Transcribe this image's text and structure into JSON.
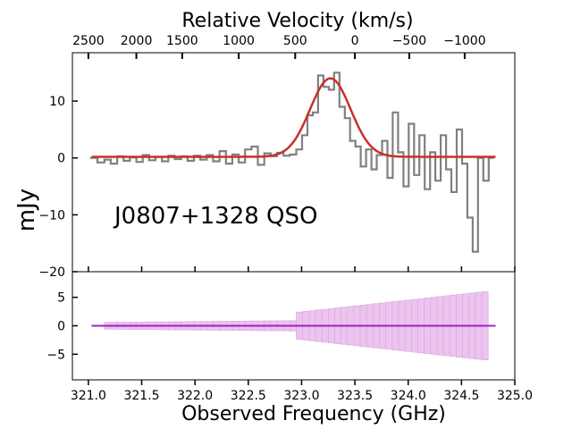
{
  "chart_data": [
    {
      "type": "line",
      "panel": "top",
      "title": "Relative Velocity (km/s)",
      "annotation": "J0807+1328 QSO",
      "ylabel": "mJy",
      "xlim": [
        320.85,
        325.0
      ],
      "ylim": [
        -20,
        18.5
      ],
      "yticks": [
        -20,
        -10,
        0,
        10
      ],
      "ytick_labels": [
        "−20",
        "−10",
        "0",
        "10"
      ],
      "top_axis": {
        "label": "Relative Velocity (km/s)",
        "ticks": [
          {
            "value": 2500,
            "label": "2500",
            "freq": 321.0
          },
          {
            "value": 2000,
            "label": "2000",
            "freq": 321.45
          },
          {
            "value": 1500,
            "label": "1500",
            "freq": 321.88
          },
          {
            "value": 1000,
            "label": "1000",
            "freq": 322.41
          },
          {
            "value": 500,
            "label": "500",
            "freq": 322.94
          },
          {
            "value": 0,
            "label": "0",
            "freq": 323.5
          },
          {
            "value": -500,
            "label": "−500",
            "freq": 324.01
          },
          {
            "value": -1000,
            "label": "−1000",
            "freq": 324.53
          }
        ]
      },
      "series": [
        {
          "name": "spectrum",
          "style": "step",
          "color": "#808080",
          "points": [
            [
              321.05,
              0.0
            ],
            [
              321.12,
              -0.8
            ],
            [
              321.18,
              -0.3
            ],
            [
              321.24,
              -1.0
            ],
            [
              321.3,
              0.3
            ],
            [
              321.36,
              -0.5
            ],
            [
              321.42,
              0.1
            ],
            [
              321.48,
              -0.7
            ],
            [
              321.54,
              0.5
            ],
            [
              321.6,
              -0.4
            ],
            [
              321.66,
              0.2
            ],
            [
              321.72,
              -0.6
            ],
            [
              321.78,
              0.4
            ],
            [
              321.84,
              -0.2
            ],
            [
              321.9,
              0.3
            ],
            [
              321.96,
              -0.5
            ],
            [
              322.02,
              0.4
            ],
            [
              322.08,
              -0.3
            ],
            [
              322.14,
              0.5
            ],
            [
              322.2,
              -0.6
            ],
            [
              322.26,
              1.2
            ],
            [
              322.32,
              -1.0
            ],
            [
              322.38,
              0.6
            ],
            [
              322.44,
              -0.8
            ],
            [
              322.5,
              1.5
            ],
            [
              322.56,
              2.0
            ],
            [
              322.62,
              -1.2
            ],
            [
              322.68,
              0.8
            ],
            [
              322.74,
              0.3
            ],
            [
              322.8,
              0.9
            ],
            [
              322.86,
              0.4
            ],
            [
              322.92,
              0.6
            ],
            [
              322.98,
              1.5
            ],
            [
              323.03,
              4.0
            ],
            [
              323.08,
              7.5
            ],
            [
              323.13,
              8.0
            ],
            [
              323.18,
              14.5
            ],
            [
              323.23,
              12.5
            ],
            [
              323.28,
              12.0
            ],
            [
              323.33,
              15.0
            ],
            [
              323.38,
              9.0
            ],
            [
              323.43,
              7.0
            ],
            [
              323.48,
              3.0
            ],
            [
              323.53,
              2.0
            ],
            [
              323.58,
              -1.5
            ],
            [
              323.63,
              1.5
            ],
            [
              323.68,
              -2.0
            ],
            [
              323.73,
              0.5
            ],
            [
              323.78,
              3.0
            ],
            [
              323.83,
              -3.5
            ],
            [
              323.88,
              8.0
            ],
            [
              323.93,
              1.0
            ],
            [
              323.98,
              -5.0
            ],
            [
              324.03,
              6.0
            ],
            [
              324.08,
              -3.0
            ],
            [
              324.13,
              4.0
            ],
            [
              324.18,
              -5.5
            ],
            [
              324.23,
              1.0
            ],
            [
              324.28,
              -4.0
            ],
            [
              324.33,
              4.0
            ],
            [
              324.38,
              -2.0
            ],
            [
              324.43,
              -6.0
            ],
            [
              324.48,
              5.0
            ],
            [
              324.53,
              -1.0
            ],
            [
              324.58,
              -10.5
            ],
            [
              324.63,
              -16.5
            ],
            [
              324.68,
              0.0
            ],
            [
              324.73,
              -4.0
            ],
            [
              324.78,
              0.0
            ]
          ]
        },
        {
          "name": "gaussian fit",
          "style": "line",
          "color": "#c8302b",
          "amplitude": 13.8,
          "center": 323.27,
          "sigma": 0.19,
          "baseline": 0.2,
          "x_start": 321.03,
          "x_end": 324.82
        }
      ]
    },
    {
      "type": "bar",
      "panel": "bottom",
      "xlabel": "Observed Frequency (GHz)",
      "xlim": [
        320.85,
        325.0
      ],
      "ylim": [
        -9.5,
        9.5
      ],
      "xticks": [
        321.0,
        321.5,
        322.0,
        322.5,
        323.0,
        323.5,
        324.0,
        324.5,
        325.0
      ],
      "xtick_labels": [
        "321.0",
        "321.5",
        "322.0",
        "322.5",
        "323.0",
        "323.5",
        "324.0",
        "324.5",
        "325.0"
      ],
      "yticks": [
        -5,
        0,
        5
      ],
      "ytick_labels": [
        "−5",
        "0",
        "5"
      ],
      "series": [
        {
          "name": "noise band",
          "color": "#ecc4ee",
          "edge_color": "#d9a6dc",
          "segments": [
            {
              "x_start": 321.15,
              "x_end": 322.95,
              "err_start": 0.6,
              "err_end": 0.9
            },
            {
              "x_start": 322.95,
              "x_end": 324.75,
              "err_start": 2.4,
              "err_end": 6.0
            }
          ]
        },
        {
          "name": "zero line",
          "color": "#a020c8",
          "x_start": 321.03,
          "x_end": 324.82,
          "value": 0
        }
      ]
    }
  ]
}
